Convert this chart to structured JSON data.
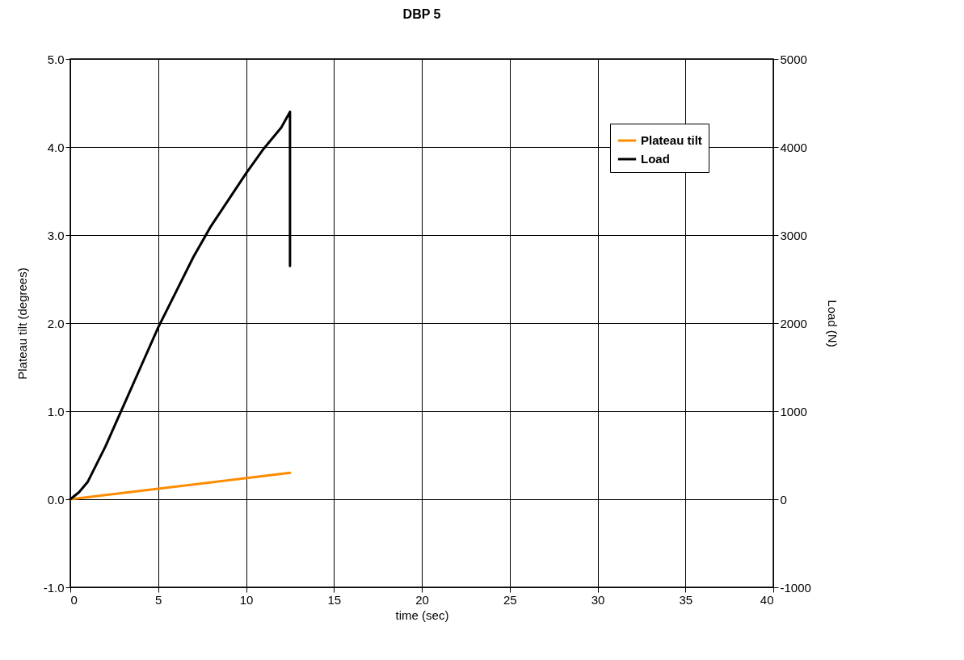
{
  "chart_data": {
    "type": "line",
    "title": "DBP 5",
    "xlabel": "time (sec)",
    "ylabel": "Plateau tilt (degrees)",
    "y2label": "Load (N)",
    "xlim": [
      0,
      40
    ],
    "xticks": [
      0,
      5,
      10,
      15,
      20,
      25,
      30,
      35,
      40
    ],
    "ylim": [
      -1,
      5
    ],
    "yticks": [
      {
        "value": -1,
        "label": "-1.0"
      },
      {
        "value": 0,
        "label": "0.0"
      },
      {
        "value": 1,
        "label": "1.0"
      },
      {
        "value": 2,
        "label": "2.0"
      },
      {
        "value": 3,
        "label": "3.0"
      },
      {
        "value": 4,
        "label": "4.0"
      },
      {
        "value": 5,
        "label": "5.0"
      }
    ],
    "y2lim": [
      -1000,
      5000
    ],
    "y2ticks": [
      -1000,
      0,
      1000,
      2000,
      3000,
      4000,
      5000
    ],
    "grid": true,
    "legend": "top right",
    "series": [
      {
        "name": "Plateau tilt",
        "color": "#ff8c00",
        "x": [
          0,
          12.5
        ],
        "values": [
          0,
          0.3
        ]
      },
      {
        "name": "Load",
        "color": "#000000",
        "axis": "y2",
        "x": [
          0,
          0.5,
          1,
          2,
          3,
          4,
          5,
          6,
          7,
          8,
          9,
          10,
          11,
          12,
          12.5,
          12.5
        ],
        "values": [
          0,
          80,
          200,
          600,
          1050,
          1500,
          1950,
          2350,
          2750,
          3100,
          3400,
          3700,
          3980,
          4220,
          4400,
          2650
        ]
      }
    ]
  }
}
